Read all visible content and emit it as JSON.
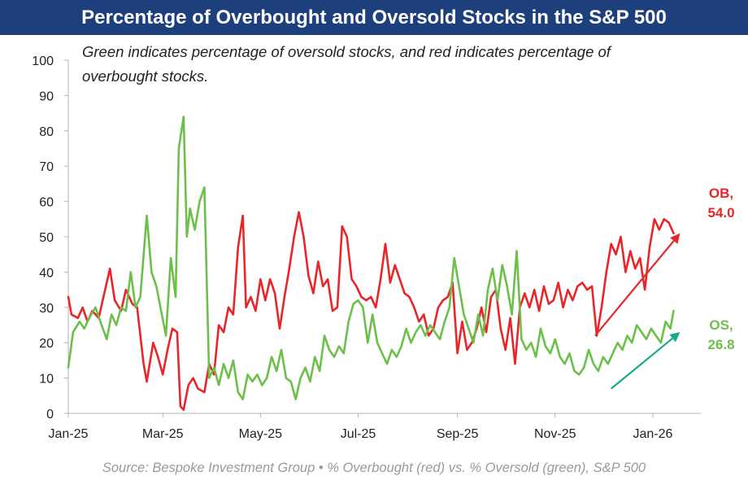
{
  "chart_data": {
    "type": "line",
    "title": "Percentage of Overbought and Oversold Stocks in the S&P 500",
    "annotation": "Green indicates percentage of oversold stocks, and red indicates percentage of overbought stocks.",
    "annotation_lines": [
      "Green indicates percentage of oversold stocks, and red indicates percentage of",
      "overbought stocks."
    ],
    "source": "Source: Bespoke Investment Group • % Overbought (red) vs. % Oversold (green), S&P 500",
    "ylim": [
      0,
      100
    ],
    "y_ticks": [
      0,
      10,
      20,
      30,
      40,
      50,
      60,
      70,
      80,
      90,
      100
    ],
    "x_range": [
      "2025-01-01",
      "2026-01-31"
    ],
    "x_ticks": [
      {
        "date": "2025-01-01",
        "label": "Jan-25"
      },
      {
        "date": "2025-03-01",
        "label": "Mar-25"
      },
      {
        "date": "2025-05-01",
        "label": "May-25"
      },
      {
        "date": "2025-07-01",
        "label": "Jul-25"
      },
      {
        "date": "2025-09-01",
        "label": "Sep-25"
      },
      {
        "date": "2025-11-01",
        "label": "Nov-25"
      },
      {
        "date": "2026-01-01",
        "label": "Jan-26"
      }
    ],
    "grid": false,
    "colors": {
      "overbought": "#e8262a",
      "oversold": "#6cc04a",
      "ob_label": "#e8262a",
      "os_label": "#6cc04a",
      "trend_red": "#e8262a",
      "trend_teal": "#1aa88a",
      "axis": "#b3b3b3"
    },
    "series": [
      {
        "key": "overbought",
        "color": "#e8262a",
        "points": [
          [
            "2025-01-01",
            33
          ],
          [
            "2025-01-03",
            28
          ],
          [
            "2025-01-07",
            27
          ],
          [
            "2025-01-10",
            30
          ],
          [
            "2025-01-13",
            26
          ],
          [
            "2025-01-16",
            29
          ],
          [
            "2025-01-20",
            27
          ],
          [
            "2025-01-23",
            33
          ],
          [
            "2025-01-27",
            41
          ],
          [
            "2025-01-30",
            32
          ],
          [
            "2025-02-03",
            29
          ],
          [
            "2025-02-06",
            35
          ],
          [
            "2025-02-10",
            31
          ],
          [
            "2025-02-13",
            30
          ],
          [
            "2025-02-17",
            14
          ],
          [
            "2025-02-19",
            9
          ],
          [
            "2025-02-23",
            20
          ],
          [
            "2025-02-26",
            16
          ],
          [
            "2025-03-01",
            11
          ],
          [
            "2025-03-04",
            18
          ],
          [
            "2025-03-07",
            24
          ],
          [
            "2025-03-10",
            23
          ],
          [
            "2025-03-12",
            2
          ],
          [
            "2025-03-14",
            1
          ],
          [
            "2025-03-17",
            8
          ],
          [
            "2025-03-20",
            10
          ],
          [
            "2025-03-23",
            7
          ],
          [
            "2025-03-27",
            6
          ],
          [
            "2025-03-30",
            14
          ],
          [
            "2025-04-02",
            11
          ],
          [
            "2025-04-05",
            25
          ],
          [
            "2025-04-08",
            23
          ],
          [
            "2025-04-11",
            30
          ],
          [
            "2025-04-14",
            28
          ],
          [
            "2025-04-17",
            47
          ],
          [
            "2025-04-20",
            56
          ],
          [
            "2025-04-22",
            30
          ],
          [
            "2025-04-25",
            33
          ],
          [
            "2025-04-28",
            29
          ],
          [
            "2025-05-01",
            38
          ],
          [
            "2025-05-04",
            32
          ],
          [
            "2025-05-07",
            38
          ],
          [
            "2025-05-10",
            34
          ],
          [
            "2025-05-13",
            24
          ],
          [
            "2025-05-16",
            33
          ],
          [
            "2025-05-19",
            41
          ],
          [
            "2025-05-22",
            50
          ],
          [
            "2025-05-25",
            57
          ],
          [
            "2025-05-28",
            50
          ],
          [
            "2025-05-31",
            39
          ],
          [
            "2025-06-03",
            34
          ],
          [
            "2025-06-06",
            43
          ],
          [
            "2025-06-09",
            36
          ],
          [
            "2025-06-12",
            38
          ],
          [
            "2025-06-15",
            29
          ],
          [
            "2025-06-18",
            30
          ],
          [
            "2025-06-21",
            53
          ],
          [
            "2025-06-24",
            50
          ],
          [
            "2025-06-27",
            38
          ],
          [
            "2025-06-30",
            36
          ],
          [
            "2025-07-03",
            33
          ],
          [
            "2025-07-06",
            32
          ],
          [
            "2025-07-09",
            33
          ],
          [
            "2025-07-12",
            30
          ],
          [
            "2025-07-15",
            38
          ],
          [
            "2025-07-18",
            48
          ],
          [
            "2025-07-21",
            37
          ],
          [
            "2025-07-24",
            42
          ],
          [
            "2025-07-27",
            38
          ],
          [
            "2025-07-30",
            34
          ],
          [
            "2025-08-02",
            33
          ],
          [
            "2025-08-05",
            30
          ],
          [
            "2025-08-08",
            26
          ],
          [
            "2025-08-11",
            28
          ],
          [
            "2025-08-14",
            22
          ],
          [
            "2025-08-17",
            24
          ],
          [
            "2025-08-20",
            30
          ],
          [
            "2025-08-23",
            32
          ],
          [
            "2025-08-26",
            33
          ],
          [
            "2025-08-29",
            37
          ],
          [
            "2025-09-01",
            17
          ],
          [
            "2025-09-04",
            26
          ],
          [
            "2025-09-07",
            18
          ],
          [
            "2025-09-10",
            20
          ],
          [
            "2025-09-13",
            24
          ],
          [
            "2025-09-16",
            30
          ],
          [
            "2025-09-19",
            23
          ],
          [
            "2025-09-22",
            33
          ],
          [
            "2025-09-25",
            35
          ],
          [
            "2025-09-28",
            24
          ],
          [
            "2025-10-01",
            18
          ],
          [
            "2025-10-04",
            27
          ],
          [
            "2025-10-07",
            14
          ],
          [
            "2025-10-10",
            30
          ],
          [
            "2025-10-13",
            34
          ],
          [
            "2025-10-16",
            30
          ],
          [
            "2025-10-19",
            35
          ],
          [
            "2025-10-22",
            29
          ],
          [
            "2025-10-25",
            36
          ],
          [
            "2025-10-28",
            31
          ],
          [
            "2025-10-31",
            32
          ],
          [
            "2025-11-03",
            37
          ],
          [
            "2025-11-06",
            30
          ],
          [
            "2025-11-09",
            35
          ],
          [
            "2025-11-12",
            32
          ],
          [
            "2025-11-15",
            36
          ],
          [
            "2025-11-18",
            37
          ],
          [
            "2025-11-21",
            35
          ],
          [
            "2025-11-24",
            36
          ],
          [
            "2025-11-27",
            22
          ],
          [
            "2025-11-30",
            30
          ],
          [
            "2025-12-03",
            40
          ],
          [
            "2025-12-06",
            48
          ],
          [
            "2025-12-09",
            45
          ],
          [
            "2025-12-12",
            50
          ],
          [
            "2025-12-15",
            40
          ],
          [
            "2025-12-18",
            46
          ],
          [
            "2025-12-21",
            41
          ],
          [
            "2025-12-24",
            44
          ],
          [
            "2025-12-27",
            35
          ],
          [
            "2025-12-30",
            47
          ],
          [
            "2026-01-02",
            55
          ],
          [
            "2026-01-05",
            52
          ],
          [
            "2026-01-08",
            55
          ],
          [
            "2026-01-11",
            54
          ],
          [
            "2026-01-14",
            51
          ]
        ]
      },
      {
        "key": "oversold",
        "color": "#6cc04a",
        "points": [
          [
            "2025-01-01",
            13
          ],
          [
            "2025-01-04",
            23
          ],
          [
            "2025-01-08",
            26
          ],
          [
            "2025-01-11",
            24
          ],
          [
            "2025-01-14",
            27
          ],
          [
            "2025-01-18",
            30
          ],
          [
            "2025-01-21",
            26
          ],
          [
            "2025-01-25",
            21
          ],
          [
            "2025-01-28",
            28
          ],
          [
            "2025-01-31",
            25
          ],
          [
            "2025-02-03",
            30
          ],
          [
            "2025-02-06",
            29
          ],
          [
            "2025-02-09",
            40
          ],
          [
            "2025-02-12",
            30
          ],
          [
            "2025-02-15",
            33
          ],
          [
            "2025-02-19",
            56
          ],
          [
            "2025-02-22",
            40
          ],
          [
            "2025-02-25",
            36
          ],
          [
            "2025-02-28",
            29
          ],
          [
            "2025-03-03",
            22
          ],
          [
            "2025-03-06",
            44
          ],
          [
            "2025-03-09",
            33
          ],
          [
            "2025-03-11",
            75
          ],
          [
            "2025-03-14",
            84
          ],
          [
            "2025-03-16",
            50
          ],
          [
            "2025-03-18",
            58
          ],
          [
            "2025-03-21",
            52
          ],
          [
            "2025-03-24",
            60
          ],
          [
            "2025-03-27",
            64
          ],
          [
            "2025-03-30",
            10
          ],
          [
            "2025-04-02",
            13
          ],
          [
            "2025-04-05",
            8
          ],
          [
            "2025-04-08",
            14
          ],
          [
            "2025-04-11",
            10
          ],
          [
            "2025-04-14",
            15
          ],
          [
            "2025-04-17",
            6
          ],
          [
            "2025-04-20",
            4
          ],
          [
            "2025-04-23",
            11
          ],
          [
            "2025-04-26",
            9
          ],
          [
            "2025-04-29",
            11
          ],
          [
            "2025-05-02",
            8
          ],
          [
            "2025-05-05",
            10
          ],
          [
            "2025-05-08",
            16
          ],
          [
            "2025-05-11",
            12
          ],
          [
            "2025-05-14",
            18
          ],
          [
            "2025-05-17",
            10
          ],
          [
            "2025-05-20",
            9
          ],
          [
            "2025-05-23",
            4
          ],
          [
            "2025-05-26",
            10
          ],
          [
            "2025-05-29",
            13
          ],
          [
            "2025-06-01",
            9
          ],
          [
            "2025-06-04",
            16
          ],
          [
            "2025-06-07",
            12
          ],
          [
            "2025-06-10",
            22
          ],
          [
            "2025-06-13",
            18
          ],
          [
            "2025-06-16",
            16
          ],
          [
            "2025-06-19",
            19
          ],
          [
            "2025-06-22",
            17
          ],
          [
            "2025-06-25",
            26
          ],
          [
            "2025-06-28",
            31
          ],
          [
            "2025-07-01",
            32
          ],
          [
            "2025-07-04",
            30
          ],
          [
            "2025-07-07",
            20
          ],
          [
            "2025-07-10",
            28
          ],
          [
            "2025-07-13",
            20
          ],
          [
            "2025-07-16",
            17
          ],
          [
            "2025-07-19",
            14
          ],
          [
            "2025-07-22",
            18
          ],
          [
            "2025-07-25",
            16
          ],
          [
            "2025-07-28",
            19
          ],
          [
            "2025-07-31",
            24
          ],
          [
            "2025-08-03",
            20
          ],
          [
            "2025-08-06",
            23
          ],
          [
            "2025-08-09",
            25
          ],
          [
            "2025-08-12",
            22
          ],
          [
            "2025-08-15",
            25
          ],
          [
            "2025-08-18",
            23
          ],
          [
            "2025-08-21",
            21
          ],
          [
            "2025-08-24",
            26
          ],
          [
            "2025-08-27",
            30
          ],
          [
            "2025-08-30",
            44
          ],
          [
            "2025-09-02",
            36
          ],
          [
            "2025-09-05",
            28
          ],
          [
            "2025-09-08",
            24
          ],
          [
            "2025-09-11",
            20
          ],
          [
            "2025-09-14",
            28
          ],
          [
            "2025-09-17",
            22
          ],
          [
            "2025-09-20",
            35
          ],
          [
            "2025-09-23",
            41
          ],
          [
            "2025-09-26",
            32
          ],
          [
            "2025-09-29",
            42
          ],
          [
            "2025-10-02",
            36
          ],
          [
            "2025-10-05",
            28
          ],
          [
            "2025-10-08",
            46
          ],
          [
            "2025-10-11",
            21
          ],
          [
            "2025-10-14",
            18
          ],
          [
            "2025-10-17",
            20
          ],
          [
            "2025-10-20",
            16
          ],
          [
            "2025-10-23",
            24
          ],
          [
            "2025-10-26",
            19
          ],
          [
            "2025-10-29",
            17
          ],
          [
            "2025-11-01",
            21
          ],
          [
            "2025-11-04",
            16
          ],
          [
            "2025-11-07",
            14
          ],
          [
            "2025-11-10",
            17
          ],
          [
            "2025-11-13",
            12
          ],
          [
            "2025-11-16",
            11
          ],
          [
            "2025-11-19",
            13
          ],
          [
            "2025-11-22",
            18
          ],
          [
            "2025-11-25",
            14
          ],
          [
            "2025-11-28",
            12
          ],
          [
            "2025-12-01",
            16
          ],
          [
            "2025-12-04",
            14
          ],
          [
            "2025-12-07",
            17
          ],
          [
            "2025-12-10",
            20
          ],
          [
            "2025-12-13",
            18
          ],
          [
            "2025-12-16",
            22
          ],
          [
            "2025-12-19",
            20
          ],
          [
            "2025-12-22",
            25
          ],
          [
            "2025-12-25",
            23
          ],
          [
            "2025-12-28",
            21
          ],
          [
            "2025-12-31",
            24
          ],
          [
            "2026-01-03",
            22
          ],
          [
            "2026-01-06",
            20
          ],
          [
            "2026-01-09",
            26
          ],
          [
            "2026-01-12",
            24
          ],
          [
            "2026-01-14",
            29
          ]
        ]
      }
    ],
    "callouts": [
      {
        "key": "ob",
        "lines": [
          "OB,",
          "54.0"
        ],
        "color": "#e8262a",
        "value": 54.0
      },
      {
        "key": "os",
        "lines": [
          "OS,",
          "26.8"
        ],
        "color": "#6cc04a",
        "value": 26.8
      }
    ],
    "trend_arrows": [
      {
        "key": "ob",
        "color": "#e8262a",
        "from": [
          "2025-11-26",
          22
        ],
        "to": [
          "2026-01-18",
          51
        ]
      },
      {
        "key": "os",
        "color": "#1aa88a",
        "from": [
          "2025-12-06",
          7
        ],
        "to": [
          "2026-01-18",
          23
        ]
      }
    ]
  }
}
